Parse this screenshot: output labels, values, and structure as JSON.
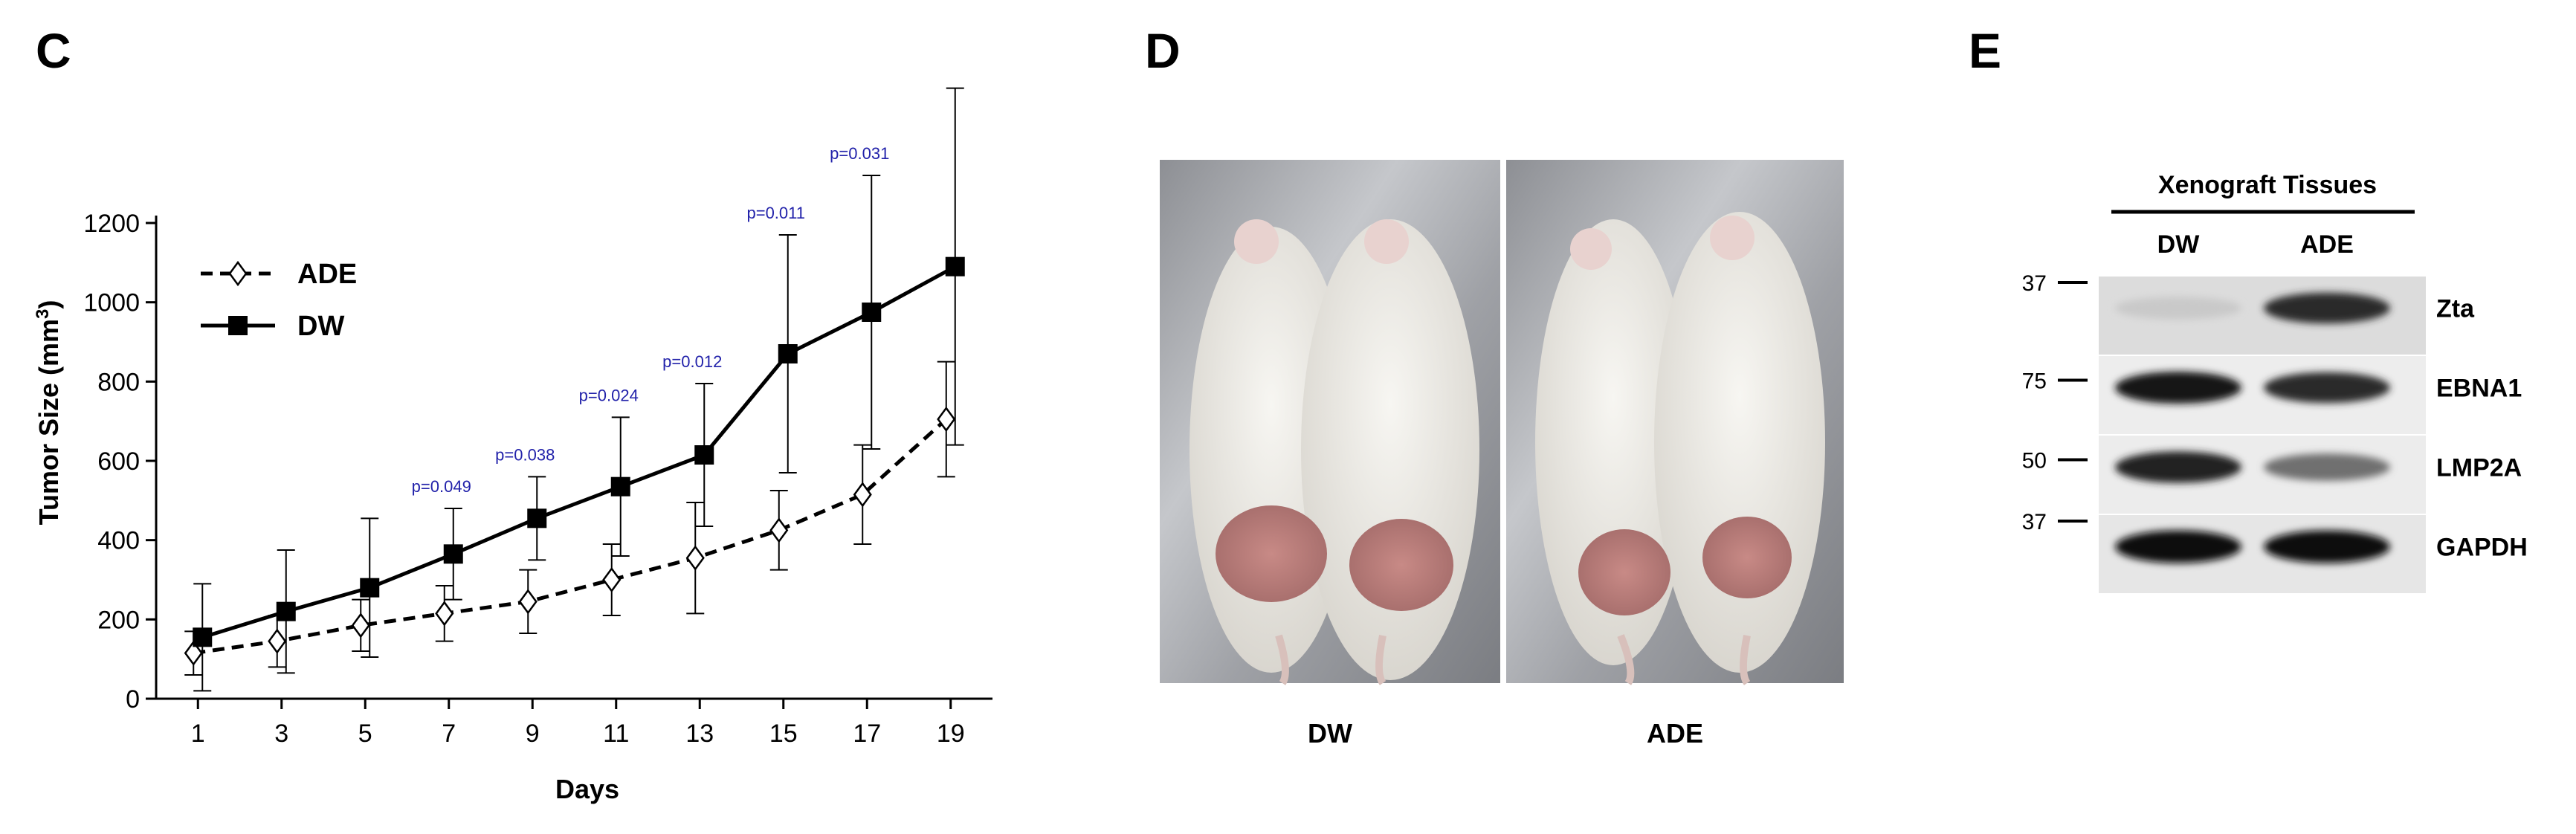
{
  "panels": {
    "c": {
      "letter": "C"
    },
    "d": {
      "letter": "D",
      "photo_labels": [
        "DW",
        "ADE"
      ]
    },
    "e": {
      "letter": "E",
      "header": "Xenograft Tissues",
      "lanes": [
        "DW",
        "ADE"
      ],
      "markers": [
        "37",
        "75",
        "50",
        "37"
      ],
      "proteins": [
        "Zta",
        "EBNA1",
        "LMP2A",
        "GAPDH"
      ],
      "band_intensity": {
        "Zta": [
          0.15,
          0.85
        ],
        "EBNA1": [
          0.95,
          0.85
        ],
        "LMP2A": [
          0.9,
          0.55
        ],
        "GAPDH": [
          1.0,
          1.0
        ]
      }
    }
  },
  "chart_data": {
    "type": "line",
    "title": "",
    "xlabel": "Days",
    "ylabel": "Tumor Size (mm3)",
    "xlim": [
      0,
      20
    ],
    "ylim": [
      0,
      1200
    ],
    "xticks": [
      1,
      3,
      5,
      7,
      9,
      11,
      13,
      15,
      17,
      19
    ],
    "yticks": [
      0,
      200,
      400,
      600,
      800,
      1000,
      1200
    ],
    "grid": false,
    "legend_position": "top-left",
    "x": [
      1,
      3,
      5,
      7,
      9,
      11,
      13,
      15,
      17,
      19
    ],
    "series": [
      {
        "name": "ADE",
        "style": "dashed",
        "marker": "open-diamond",
        "color": "#000000",
        "values": [
          115,
          145,
          185,
          215,
          245,
          300,
          355,
          425,
          515,
          705
        ],
        "error": [
          55,
          65,
          65,
          70,
          80,
          90,
          140,
          100,
          125,
          145
        ]
      },
      {
        "name": "DW",
        "style": "solid",
        "marker": "filled-square",
        "color": "#000000",
        "values": [
          155,
          220,
          280,
          365,
          455,
          535,
          615,
          870,
          975,
          1090
        ],
        "error": [
          135,
          155,
          175,
          115,
          105,
          175,
          180,
          300,
          345,
          450
        ]
      }
    ],
    "annotations": [
      {
        "x": 7,
        "text": "p=0.049"
      },
      {
        "x": 9,
        "text": "p=0.038"
      },
      {
        "x": 11,
        "text": "p=0.024"
      },
      {
        "x": 13,
        "text": "p=0.012"
      },
      {
        "x": 15,
        "text": "p=0.011"
      },
      {
        "x": 17,
        "text": "p=0.031"
      }
    ]
  }
}
